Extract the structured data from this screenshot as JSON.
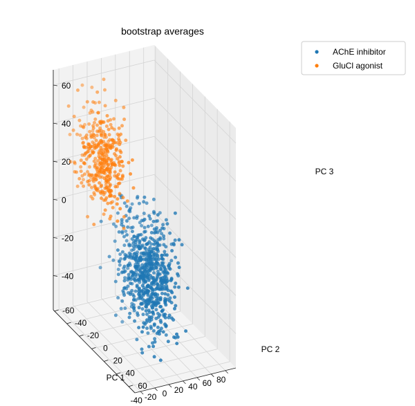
{
  "chart_data": {
    "type": "scatter",
    "projection": "3d",
    "title": "bootstrap averages",
    "xlabel": "PC 1",
    "ylabel": "PC 2",
    "zlabel": "PC 3",
    "xlim": [
      -48,
      95
    ],
    "ylim": [
      -62,
      70
    ],
    "zlim": [
      -58,
      68
    ],
    "xticks": [
      -40,
      -20,
      0,
      20,
      40,
      60,
      80
    ],
    "yticks": [
      -60,
      -40,
      -20,
      0,
      20,
      40,
      60
    ],
    "zticks": [
      -40,
      -20,
      0,
      20,
      40,
      60
    ],
    "grid": true,
    "legend_position": "upper-right",
    "series": [
      {
        "name": "AChE inhibitor",
        "color": "#1f77b4",
        "count": 700,
        "center": [
          27,
          5,
          -25
        ],
        "spread": [
          16,
          14,
          14
        ],
        "range_x": [
          -20,
          75
        ],
        "range_y": [
          -30,
          45
        ],
        "range_z": [
          -58,
          20
        ]
      },
      {
        "name": "GluCl agonist",
        "color": "#ff7f0e",
        "count": 400,
        "center": [
          -12,
          -25,
          30
        ],
        "spread": [
          12,
          12,
          12
        ],
        "range_x": [
          -45,
          55
        ],
        "range_y": [
          -55,
          55
        ],
        "range_z": [
          0,
          68
        ]
      }
    ]
  }
}
